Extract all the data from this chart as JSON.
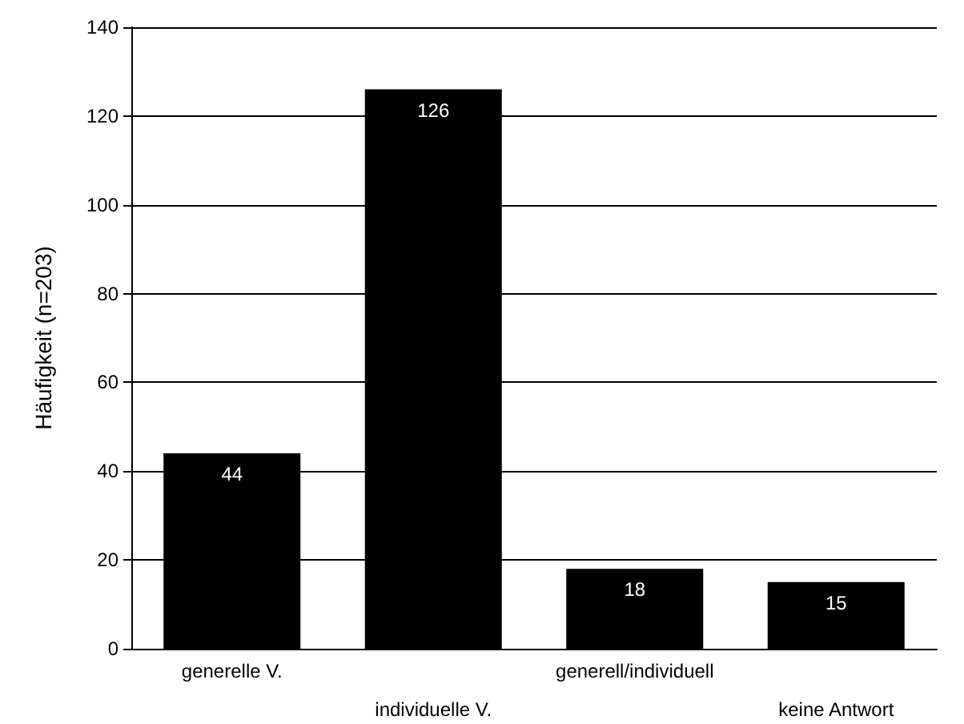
{
  "chart_data": {
    "type": "bar",
    "ylabel": "Häufigkeit (n=203)",
    "categories": [
      "generelle V.",
      "individuelle V.",
      "generell/individuell",
      "keine Antwort"
    ],
    "values": [
      44,
      126,
      18,
      15
    ],
    "color": "#000000",
    "ylim": [
      0,
      140
    ],
    "yticks": [
      0,
      20,
      40,
      60,
      80,
      100,
      120,
      140
    ],
    "grid": "y",
    "data_labels": true
  }
}
